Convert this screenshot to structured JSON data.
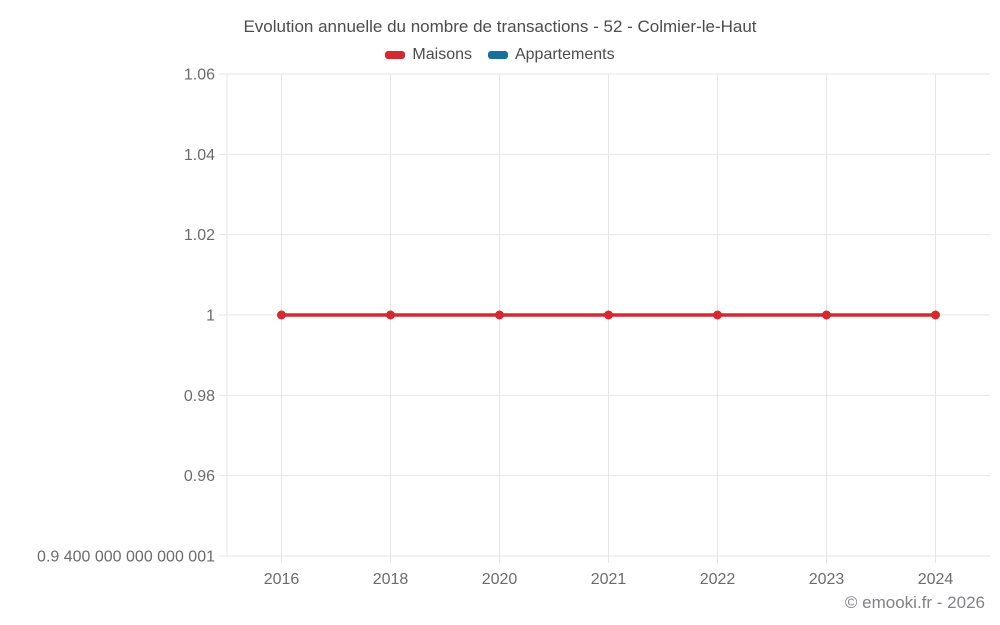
{
  "title": "Evolution annuelle du nombre de transactions - 52 - Colmier-le-Haut",
  "legend": [
    {
      "label": "Maisons",
      "color": "#d4292e"
    },
    {
      "label": "Appartements",
      "color": "#166f9c"
    }
  ],
  "footer": "© emooki.fr - 2026",
  "chart_data": {
    "type": "line",
    "title": "Evolution annuelle du nombre de transactions - 52 - Colmier-le-Haut",
    "categories": [
      "2016",
      "2018",
      "2020",
      "2021",
      "2022",
      "2023",
      "2024"
    ],
    "series": [
      {
        "name": "Maisons",
        "color": "#d4292e",
        "values": [
          1,
          1,
          1,
          1,
          1,
          1,
          1
        ]
      },
      {
        "name": "Appartements",
        "color": "#166f9c",
        "values": []
      }
    ],
    "xlabel": "",
    "ylabel": "",
    "ylim": [
      0.94,
      1.06
    ],
    "yticks": [
      {
        "value": 1.06,
        "label": "1.06"
      },
      {
        "value": 1.04,
        "label": "1.04"
      },
      {
        "value": 1.02,
        "label": "1.02"
      },
      {
        "value": 1.0,
        "label": "1"
      },
      {
        "value": 0.98,
        "label": "0.98"
      },
      {
        "value": 0.96,
        "label": "0.96"
      },
      {
        "value": 0.94,
        "label": "0.9 400 000 000 000 001"
      }
    ],
    "grid": true,
    "legend_position": "top",
    "marker": "circle"
  },
  "style": {
    "grid_color": "#e6e6e6",
    "tick_label_color": "#6b6b6b",
    "title_color": "#4c4c4c",
    "footer_color": "#828186",
    "background": "#ffffff"
  }
}
